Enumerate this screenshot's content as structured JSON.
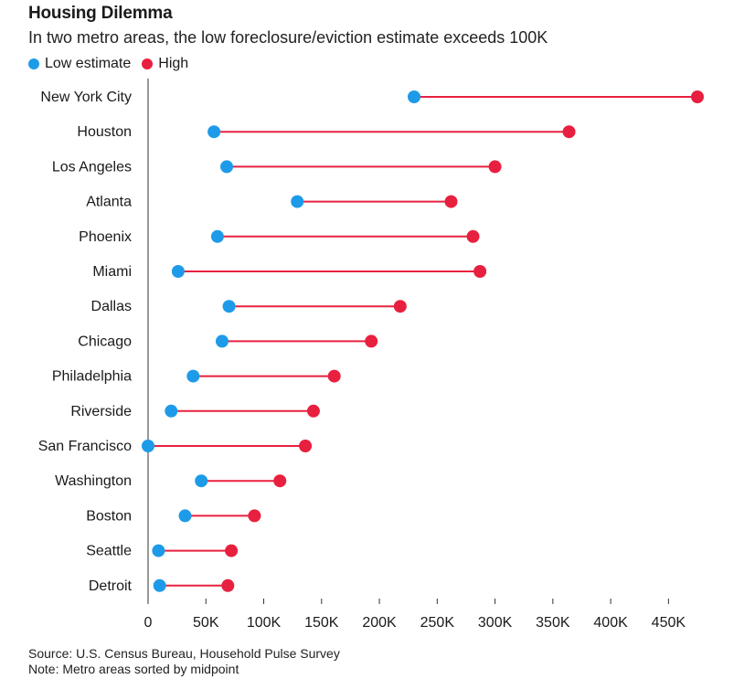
{
  "title": "Housing Dilemma",
  "subtitle": "In two metro areas, the low foreclosure/eviction estimate exceeds 100K",
  "source": "Source: U.S. Census Bureau, Household Pulse Survey",
  "note": "Note: Metro areas sorted by midpoint",
  "colors": {
    "low": "#1e9be8",
    "high": "#e8203f",
    "axis": "#333333"
  },
  "chart_data": {
    "type": "dumbbell",
    "legend": [
      {
        "name": "Low estimate",
        "color": "#1e9be8"
      },
      {
        "name": "High",
        "color": "#e8203f"
      }
    ],
    "legend_position": "top-left",
    "xlim": [
      0,
      475000
    ],
    "xticks": [
      0,
      50000,
      100000,
      150000,
      200000,
      250000,
      300000,
      350000,
      400000,
      450000
    ],
    "xtick_labels": [
      "0",
      "50K",
      "100K",
      "150K",
      "200K",
      "250K",
      "300K",
      "350K",
      "400K",
      "450K"
    ],
    "grid": false,
    "categories": [
      "New York City",
      "Houston",
      "Los Angeles",
      "Atlanta",
      "Phoenix",
      "Miami",
      "Dallas",
      "Chicago",
      "Philadelphia",
      "Riverside",
      "San Francisco",
      "Washington",
      "Boston",
      "Seattle",
      "Detroit"
    ],
    "series": [
      {
        "name": "Low estimate",
        "values": [
          230000,
          57000,
          68000,
          129000,
          60000,
          26000,
          70000,
          64000,
          39000,
          20000,
          0,
          46000,
          32000,
          9000,
          10000
        ]
      },
      {
        "name": "High",
        "values": [
          475000,
          364000,
          300000,
          262000,
          281000,
          287000,
          218000,
          193000,
          161000,
          143000,
          136000,
          114000,
          92000,
          72000,
          69000
        ]
      }
    ]
  }
}
